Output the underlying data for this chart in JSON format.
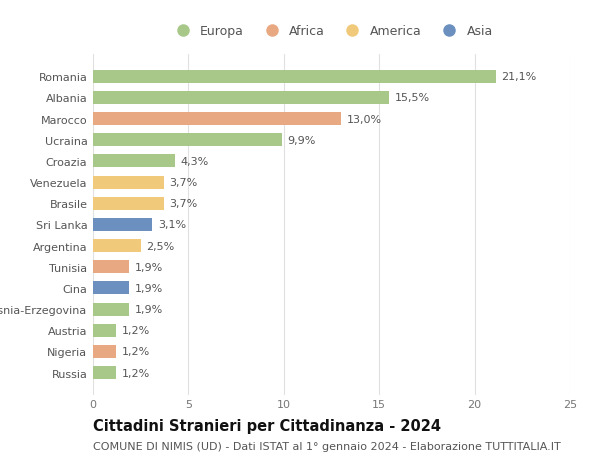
{
  "countries": [
    "Romania",
    "Albania",
    "Marocco",
    "Ucraina",
    "Croazia",
    "Venezuela",
    "Brasile",
    "Sri Lanka",
    "Argentina",
    "Tunisia",
    "Cina",
    "Bosnia-Erzegovina",
    "Austria",
    "Nigeria",
    "Russia"
  ],
  "values": [
    21.1,
    15.5,
    13.0,
    9.9,
    4.3,
    3.7,
    3.7,
    3.1,
    2.5,
    1.9,
    1.9,
    1.9,
    1.2,
    1.2,
    1.2
  ],
  "labels": [
    "21,1%",
    "15,5%",
    "13,0%",
    "9,9%",
    "4,3%",
    "3,7%",
    "3,7%",
    "3,1%",
    "2,5%",
    "1,9%",
    "1,9%",
    "1,9%",
    "1,2%",
    "1,2%",
    "1,2%"
  ],
  "continents": [
    "Europa",
    "Europa",
    "Africa",
    "Europa",
    "Europa",
    "America",
    "America",
    "Asia",
    "America",
    "Africa",
    "Asia",
    "Europa",
    "Europa",
    "Africa",
    "Europa"
  ],
  "continent_colors": {
    "Europa": "#a8c88a",
    "Africa": "#e8a882",
    "America": "#f0c97a",
    "Asia": "#6b8fbf"
  },
  "legend_order": [
    "Europa",
    "Africa",
    "America",
    "Asia"
  ],
  "title": "Cittadini Stranieri per Cittadinanza - 2024",
  "subtitle": "COMUNE DI NIMIS (UD) - Dati ISTAT al 1° gennaio 2024 - Elaborazione TUTTITALIA.IT",
  "xlim": [
    0,
    25
  ],
  "xticks": [
    0,
    5,
    10,
    15,
    20,
    25
  ],
  "grid_color": "#e0e0e0",
  "background_color": "#ffffff",
  "bar_height": 0.62,
  "label_fontsize": 8.0,
  "tick_fontsize": 8.0,
  "title_fontsize": 10.5,
  "subtitle_fontsize": 8.0
}
